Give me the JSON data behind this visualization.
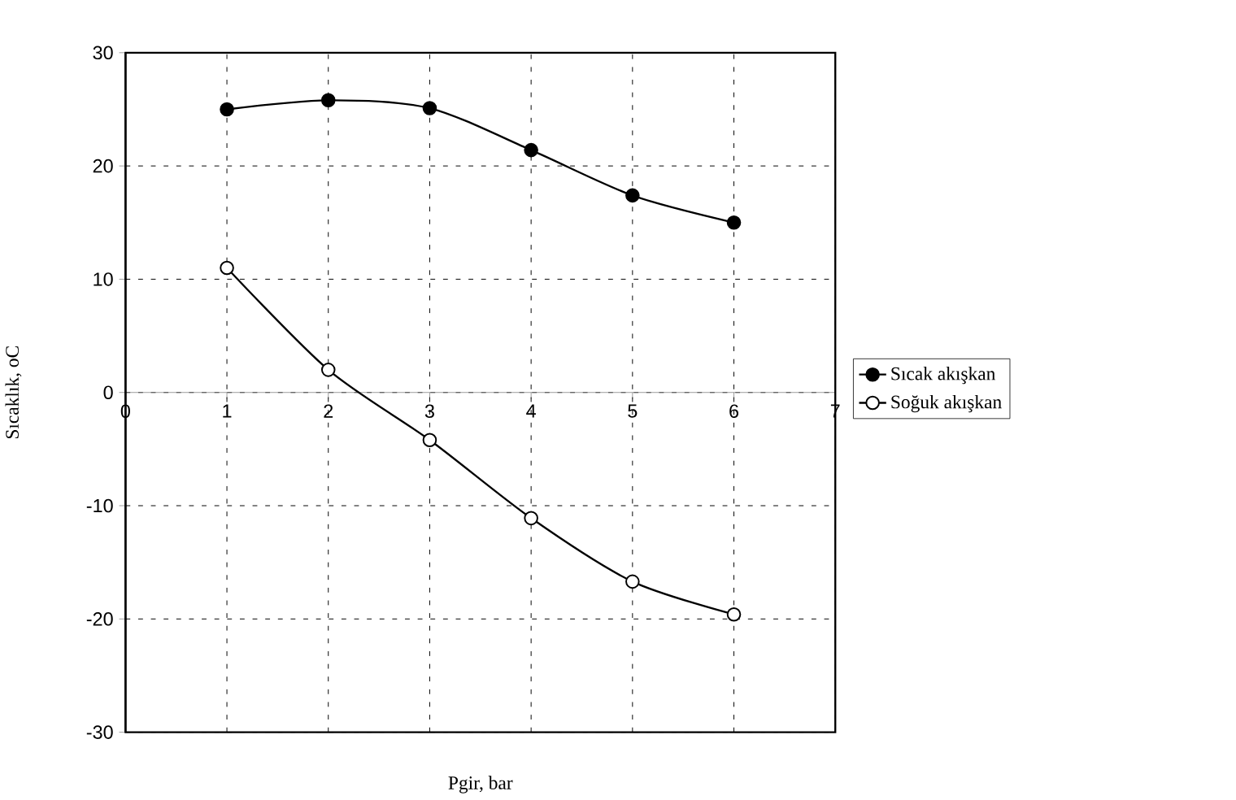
{
  "chart_data": {
    "type": "line",
    "xlabel": "Pgir, bar",
    "ylabel": "Sıcaklık, oC",
    "x": [
      1,
      2,
      3,
      4,
      5,
      6
    ],
    "series": [
      {
        "name": "Sıcak akışkan",
        "color": "#000000",
        "values": [
          25.0,
          25.8,
          25.1,
          21.4,
          17.4,
          15.0
        ]
      },
      {
        "name": "Soğuk akışkan",
        "color": "#000000",
        "values": [
          11.0,
          2.0,
          -4.2,
          -11.1,
          -16.7,
          -19.6
        ]
      }
    ],
    "xlim": [
      0,
      7
    ],
    "xticks": [
      0,
      1,
      2,
      3,
      4,
      5,
      6,
      7
    ],
    "ylim": [
      -30,
      30
    ],
    "yticks": [
      -30,
      -20,
      -10,
      0,
      10,
      20,
      30
    ],
    "grid": true,
    "legend": "right",
    "marker": "circle",
    "line_style": "solid"
  }
}
